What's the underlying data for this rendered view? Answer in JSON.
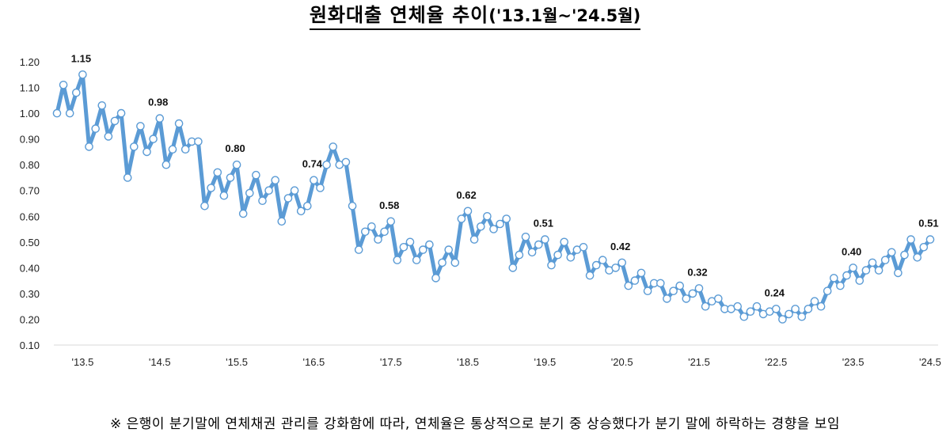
{
  "title": {
    "main": "원화대출 연체율 추이",
    "period": "('13.1월~'24.5월)"
  },
  "footnote": "※ 은행이 분기말에 연체채권 관리를 강화함에 따라, 연체율은 통상적으로 분기 중 상승했다가 분기 말에 하락하는 경향을 보임",
  "colors": {
    "line": "#5B9BD5",
    "marker_fill": "#ffffff",
    "axis": "#d9d9d9"
  },
  "chart_data": {
    "type": "line",
    "title": "원화대출 연체율 추이('13.1월~'24.5월)",
    "xlabel": "",
    "ylabel": "",
    "ylim": [
      0.1,
      1.2
    ],
    "yticks": [
      "1.20",
      "1.10",
      "1.00",
      "0.90",
      "0.80",
      "0.70",
      "0.60",
      "0.50",
      "0.40",
      "0.30",
      "0.20",
      "0.10"
    ],
    "grid": false,
    "legend": null,
    "x_start": "2013-01",
    "x_end": "2024-05",
    "xtick_labels": [
      {
        "label": "'13.5",
        "index": 4
      },
      {
        "label": "'14.5",
        "index": 16
      },
      {
        "label": "'15.5",
        "index": 28
      },
      {
        "label": "'16.5",
        "index": 40
      },
      {
        "label": "'17.5",
        "index": 52
      },
      {
        "label": "'18.5",
        "index": 64
      },
      {
        "label": "'19.5",
        "index": 76
      },
      {
        "label": "'20.5",
        "index": 88
      },
      {
        "label": "'21.5",
        "index": 100
      },
      {
        "label": "'22.5",
        "index": 112
      },
      {
        "label": "'23.5",
        "index": 124
      },
      {
        "label": "'24.5",
        "index": 136
      }
    ],
    "annotations": [
      {
        "index": 4,
        "text": "1.15"
      },
      {
        "index": 16,
        "text": "0.98"
      },
      {
        "index": 28,
        "text": "0.80"
      },
      {
        "index": 40,
        "text": "0.74"
      },
      {
        "index": 52,
        "text": "0.58"
      },
      {
        "index": 64,
        "text": "0.62"
      },
      {
        "index": 76,
        "text": "0.51"
      },
      {
        "index": 88,
        "text": "0.42"
      },
      {
        "index": 100,
        "text": "0.32"
      },
      {
        "index": 112,
        "text": "0.24"
      },
      {
        "index": 124,
        "text": "0.40"
      },
      {
        "index": 136,
        "text": "0.51"
      }
    ],
    "series": [
      {
        "name": "원화대출 연체율(%)",
        "values": [
          1.0,
          1.11,
          1.0,
          1.08,
          1.15,
          0.87,
          0.94,
          1.03,
          0.91,
          0.97,
          1.0,
          0.75,
          0.87,
          0.95,
          0.85,
          0.9,
          0.98,
          0.8,
          0.86,
          0.96,
          0.86,
          0.89,
          0.89,
          0.64,
          0.71,
          0.77,
          0.68,
          0.75,
          0.8,
          0.61,
          0.69,
          0.76,
          0.66,
          0.7,
          0.74,
          0.58,
          0.67,
          0.7,
          0.62,
          0.64,
          0.74,
          0.71,
          0.8,
          0.87,
          0.8,
          0.81,
          0.64,
          0.47,
          0.54,
          0.56,
          0.51,
          0.54,
          0.58,
          0.43,
          0.48,
          0.5,
          0.43,
          0.47,
          0.49,
          0.36,
          0.42,
          0.47,
          0.42,
          0.59,
          0.62,
          0.51,
          0.56,
          0.6,
          0.55,
          0.57,
          0.59,
          0.4,
          0.45,
          0.52,
          0.46,
          0.49,
          0.51,
          0.41,
          0.45,
          0.5,
          0.44,
          0.47,
          0.48,
          0.37,
          0.41,
          0.43,
          0.39,
          0.4,
          0.42,
          0.33,
          0.35,
          0.38,
          0.31,
          0.34,
          0.34,
          0.28,
          0.31,
          0.33,
          0.28,
          0.3,
          0.32,
          0.25,
          0.27,
          0.28,
          0.24,
          0.24,
          0.25,
          0.21,
          0.23,
          0.25,
          0.22,
          0.23,
          0.24,
          0.2,
          0.22,
          0.24,
          0.21,
          0.24,
          0.27,
          0.25,
          0.31,
          0.36,
          0.33,
          0.37,
          0.4,
          0.35,
          0.39,
          0.42,
          0.39,
          0.43,
          0.46,
          0.38,
          0.45,
          0.51,
          0.44,
          0.48,
          0.51
        ]
      }
    ]
  }
}
